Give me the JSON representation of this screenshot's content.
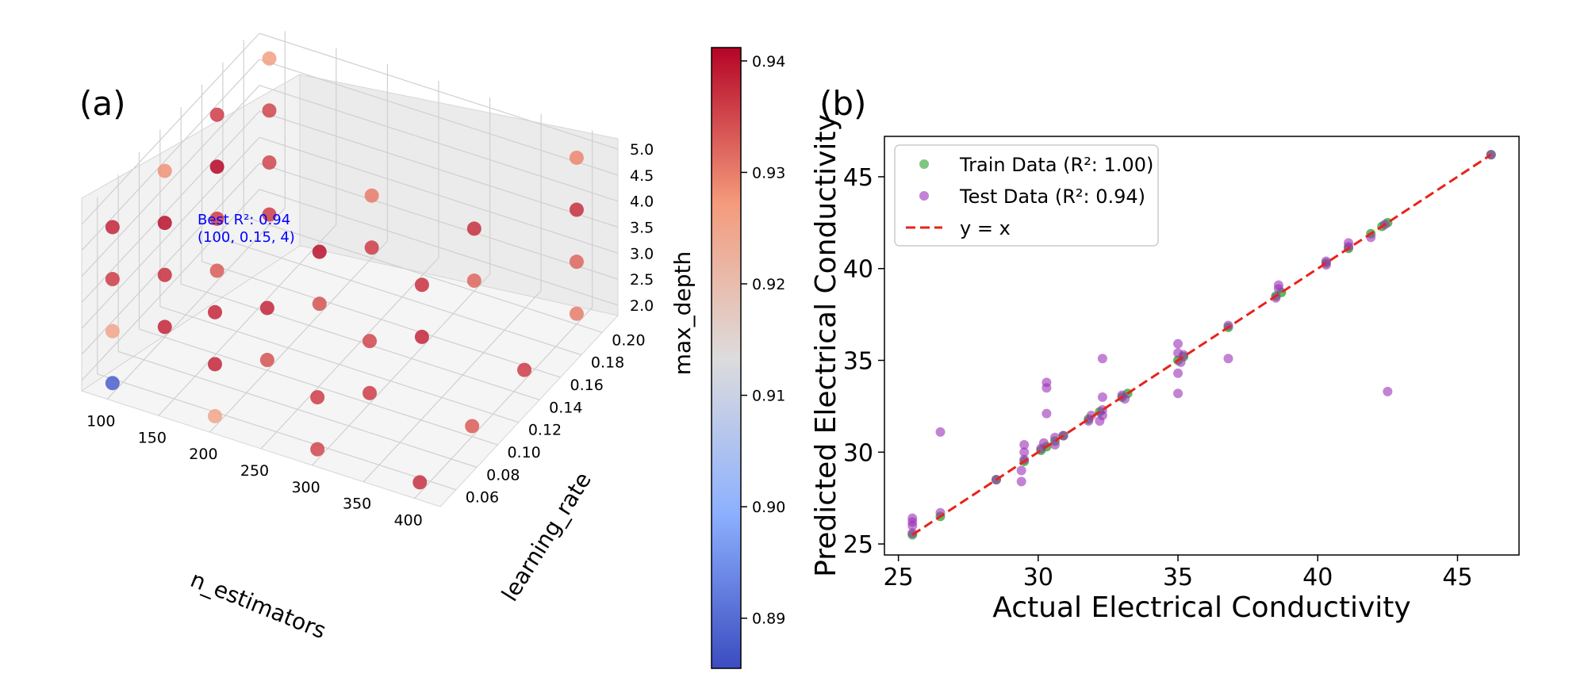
{
  "panels": {
    "a_label": "(a)",
    "b_label": "(b)"
  },
  "colors": {
    "train": "#2ca02c",
    "test": "#9b30b8",
    "diag": "#e8231a",
    "annotation": "#0000ff",
    "pane": "#f2f2f2",
    "grid": "#d0d0d0",
    "cmap_low": "#3b4cc0",
    "cmap_mid": "#dddcdc",
    "cmap_high": "#b40426"
  },
  "chart_data": [
    {
      "type": "scatter3d",
      "title": "",
      "xlabel": "n_estimators",
      "ylabel": "learning_rate",
      "zlabel": "max_depth",
      "xlim": [
        75,
        425
      ],
      "ylim": [
        0.045,
        0.215
      ],
      "zlim": [
        1.8,
        5.2
      ],
      "xticks": [
        "100",
        "150",
        "200",
        "250",
        "300",
        "350",
        "400"
      ],
      "yticks": [
        "0.06",
        "0.08",
        "0.10",
        "0.12",
        "0.14",
        "0.16",
        "0.18",
        "0.20"
      ],
      "zticks": [
        "2.0",
        "2.5",
        "3.0",
        "3.5",
        "4.0",
        "4.5",
        "5.0"
      ],
      "annotation": {
        "line1": "Best R²: 0.94",
        "line2": "(100, 0.15, 4)"
      },
      "colorbar": {
        "vmin": 0.8855,
        "vmax": 0.9412,
        "ticks": [
          "0.89",
          "0.90",
          "0.91",
          "0.92",
          "0.93",
          "0.94"
        ]
      },
      "points": [
        {
          "n_estimators": 100,
          "learning_rate": 0.05,
          "max_depth": 2,
          "r2": 0.888
        },
        {
          "n_estimators": 100,
          "learning_rate": 0.05,
          "max_depth": 3,
          "r2": 0.925
        },
        {
          "n_estimators": 100,
          "learning_rate": 0.05,
          "max_depth": 4,
          "r2": 0.936
        },
        {
          "n_estimators": 100,
          "learning_rate": 0.05,
          "max_depth": 5,
          "r2": 0.938
        },
        {
          "n_estimators": 200,
          "learning_rate": 0.05,
          "max_depth": 2,
          "r2": 0.925
        },
        {
          "n_estimators": 200,
          "learning_rate": 0.05,
          "max_depth": 3,
          "r2": 0.938
        },
        {
          "n_estimators": 200,
          "learning_rate": 0.05,
          "max_depth": 4,
          "r2": 0.938
        },
        {
          "n_estimators": 300,
          "learning_rate": 0.05,
          "max_depth": 2,
          "r2": 0.935
        },
        {
          "n_estimators": 300,
          "learning_rate": 0.05,
          "max_depth": 3,
          "r2": 0.936
        },
        {
          "n_estimators": 400,
          "learning_rate": 0.05,
          "max_depth": 2,
          "r2": 0.937
        },
        {
          "n_estimators": 100,
          "learning_rate": 0.1,
          "max_depth": 2,
          "r2": 0.938
        },
        {
          "n_estimators": 100,
          "learning_rate": 0.1,
          "max_depth": 3,
          "r2": 0.937
        },
        {
          "n_estimators": 100,
          "learning_rate": 0.1,
          "max_depth": 4,
          "r2": 0.94
        },
        {
          "n_estimators": 100,
          "learning_rate": 0.1,
          "max_depth": 5,
          "r2": 0.928
        },
        {
          "n_estimators": 200,
          "learning_rate": 0.1,
          "max_depth": 2,
          "r2": 0.934
        },
        {
          "n_estimators": 200,
          "learning_rate": 0.1,
          "max_depth": 3,
          "r2": 0.938
        },
        {
          "n_estimators": 300,
          "learning_rate": 0.1,
          "max_depth": 2,
          "r2": 0.936
        },
        {
          "n_estimators": 300,
          "learning_rate": 0.1,
          "max_depth": 3,
          "r2": 0.935
        },
        {
          "n_estimators": 400,
          "learning_rate": 0.1,
          "max_depth": 2,
          "r2": 0.933
        },
        {
          "n_estimators": 100,
          "learning_rate": 0.15,
          "max_depth": 2,
          "r2": 0.933
        },
        {
          "n_estimators": 100,
          "learning_rate": 0.15,
          "max_depth": 3,
          "r2": 0.936
        },
        {
          "n_estimators": 100,
          "learning_rate": 0.15,
          "max_depth": 4,
          "r2": 0.941
        },
        {
          "n_estimators": 100,
          "learning_rate": 0.15,
          "max_depth": 5,
          "r2": 0.936
        },
        {
          "n_estimators": 200,
          "learning_rate": 0.15,
          "max_depth": 2,
          "r2": 0.934
        },
        {
          "n_estimators": 200,
          "learning_rate": 0.15,
          "max_depth": 3,
          "r2": 0.94
        },
        {
          "n_estimators": 300,
          "learning_rate": 0.15,
          "max_depth": 2,
          "r2": 0.938
        },
        {
          "n_estimators": 300,
          "learning_rate": 0.15,
          "max_depth": 3,
          "r2": 0.937
        },
        {
          "n_estimators": 400,
          "learning_rate": 0.15,
          "max_depth": 2,
          "r2": 0.936
        },
        {
          "n_estimators": 100,
          "learning_rate": 0.2,
          "max_depth": 2,
          "r2": 0.936
        },
        {
          "n_estimators": 100,
          "learning_rate": 0.2,
          "max_depth": 3,
          "r2": 0.935
        },
        {
          "n_estimators": 100,
          "learning_rate": 0.2,
          "max_depth": 4,
          "r2": 0.935
        },
        {
          "n_estimators": 100,
          "learning_rate": 0.2,
          "max_depth": 5,
          "r2": 0.926
        },
        {
          "n_estimators": 200,
          "learning_rate": 0.2,
          "max_depth": 2,
          "r2": 0.936
        },
        {
          "n_estimators": 200,
          "learning_rate": 0.2,
          "max_depth": 3,
          "r2": 0.93
        },
        {
          "n_estimators": 300,
          "learning_rate": 0.2,
          "max_depth": 2,
          "r2": 0.932
        },
        {
          "n_estimators": 300,
          "learning_rate": 0.2,
          "max_depth": 3,
          "r2": 0.937
        },
        {
          "n_estimators": 400,
          "learning_rate": 0.2,
          "max_depth": 2,
          "r2": 0.93
        },
        {
          "n_estimators": 400,
          "learning_rate": 0.2,
          "max_depth": 3,
          "r2": 0.932
        },
        {
          "n_estimators": 400,
          "learning_rate": 0.2,
          "max_depth": 4,
          "r2": 0.937
        },
        {
          "n_estimators": 400,
          "learning_rate": 0.2,
          "max_depth": 5,
          "r2": 0.929
        }
      ]
    },
    {
      "type": "scatter",
      "title": "",
      "xlabel": "Actual Electrical Conductivity",
      "ylabel": "Predicted Electrical Conductivity",
      "xlim": [
        24.5,
        47.2
      ],
      "ylim": [
        24.4,
        47.2
      ],
      "xticks": [
        25,
        30,
        35,
        40,
        45
      ],
      "yticks": [
        25,
        30,
        35,
        40,
        45
      ],
      "legend_position": "top-left",
      "series": [
        {
          "name": "Train Data (R²: 1.00)",
          "x": [
            25.5,
            26.5,
            28.5,
            29.5,
            30.1,
            30.3,
            30.6,
            30.9,
            31.8,
            32.2,
            33.0,
            33.2,
            35.0,
            35.2,
            36.8,
            38.5,
            38.7,
            40.3,
            41.1,
            41.9,
            42.3,
            42.5,
            46.2
          ],
          "y": [
            25.5,
            26.5,
            28.5,
            29.5,
            30.1,
            30.3,
            30.6,
            30.9,
            31.8,
            32.2,
            33.0,
            33.2,
            35.0,
            35.2,
            36.8,
            38.5,
            38.7,
            40.3,
            41.1,
            41.9,
            42.3,
            42.5,
            46.2
          ]
        },
        {
          "name": "Test Data (R²: 0.94)",
          "x": [
            25.5,
            25.5,
            25.5,
            25.5,
            26.5,
            26.5,
            28.5,
            29.4,
            29.4,
            29.5,
            29.5,
            29.5,
            30.1,
            30.2,
            30.3,
            30.3,
            30.3,
            30.6,
            30.6,
            30.9,
            31.8,
            31.9,
            32.2,
            32.3,
            32.3,
            32.3,
            32.3,
            33.0,
            33.1,
            35.0,
            35.0,
            35.0,
            35.0,
            35.1,
            35.2,
            36.8,
            36.8,
            38.5,
            38.6,
            38.6,
            40.3,
            40.3,
            41.1,
            41.1,
            41.9,
            42.4,
            42.5,
            46.2
          ],
          "y": [
            25.6,
            26.0,
            26.2,
            26.4,
            26.7,
            31.1,
            28.5,
            28.4,
            29.0,
            29.6,
            30.0,
            30.4,
            30.2,
            30.5,
            33.8,
            33.5,
            32.1,
            30.4,
            30.8,
            30.9,
            31.7,
            32.0,
            31.7,
            35.1,
            33.0,
            32.3,
            32.0,
            33.1,
            32.9,
            33.2,
            34.3,
            35.4,
            35.9,
            34.9,
            35.3,
            35.1,
            36.9,
            38.4,
            38.9,
            39.1,
            40.2,
            40.4,
            41.2,
            41.4,
            41.7,
            42.4,
            33.3,
            46.2
          ]
        },
        {
          "name": "y = x",
          "x": [
            25.5,
            46.2
          ],
          "y": [
            25.5,
            46.2
          ]
        }
      ]
    }
  ]
}
